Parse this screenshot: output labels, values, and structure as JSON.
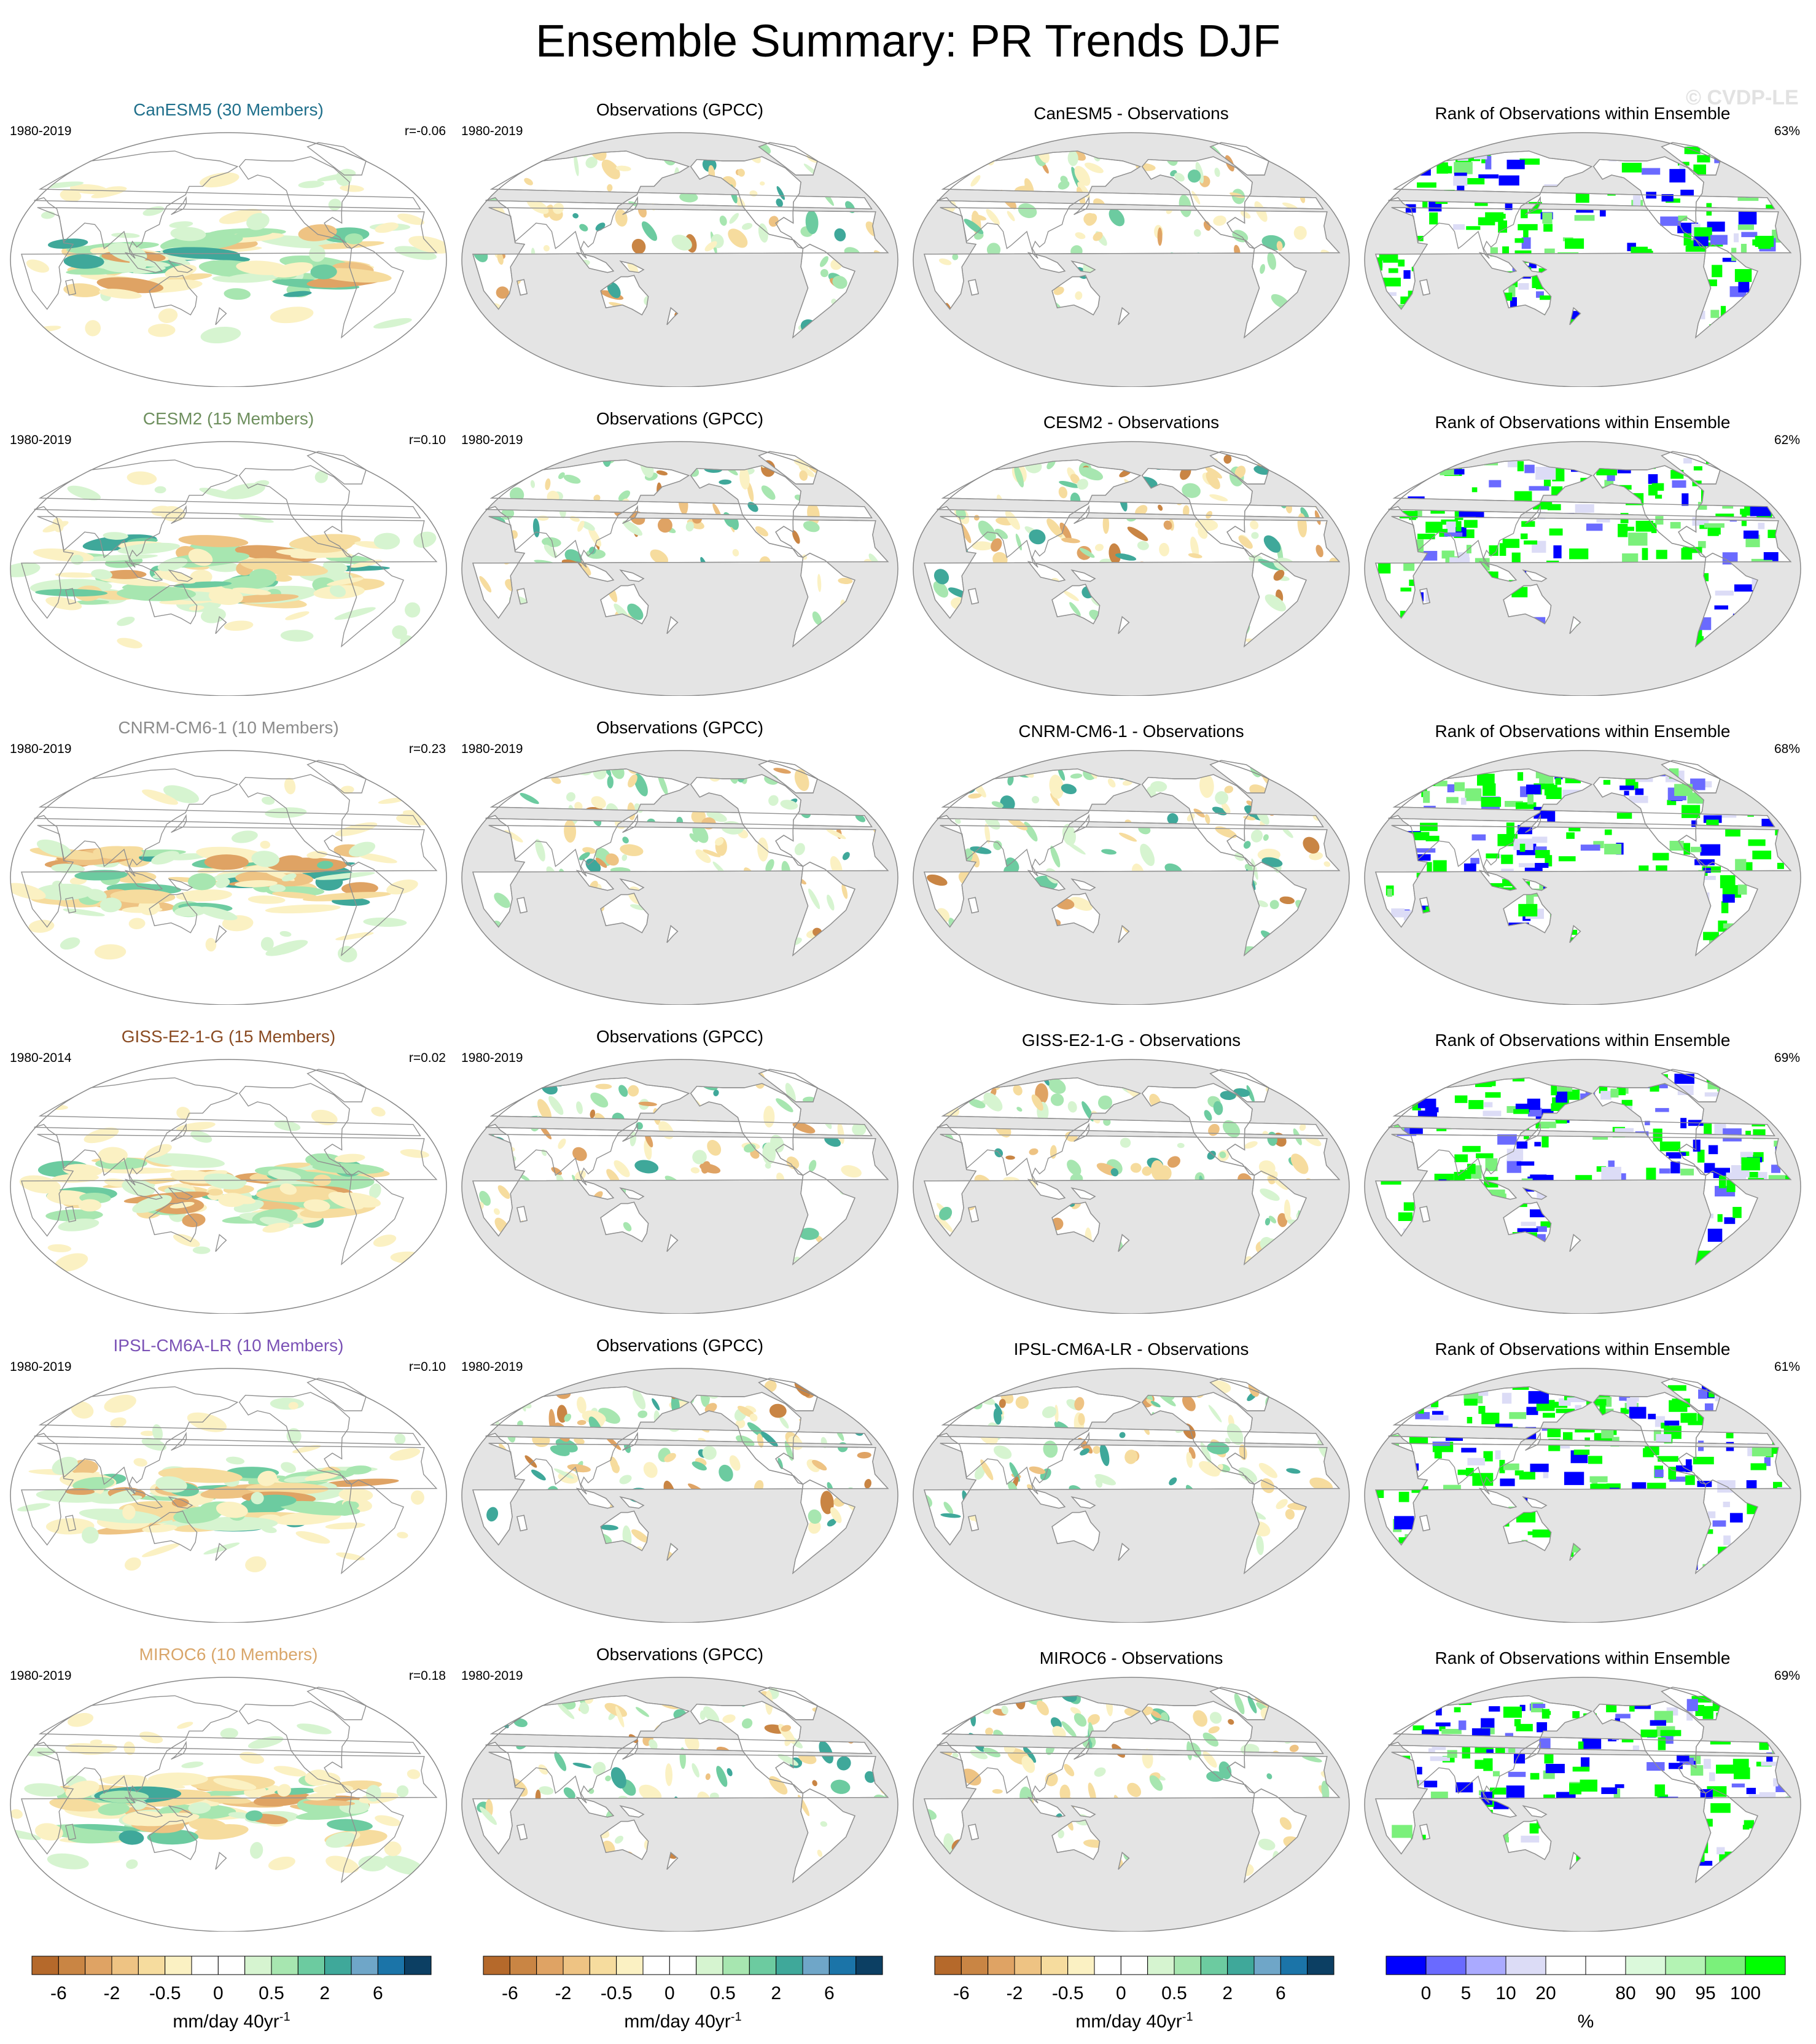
{
  "title": "Ensemble Summary: PR Trends DJF",
  "watermark": "© CVDP-LE",
  "colors": {
    "land_gray": "#e4e4e4",
    "coast": "#909090",
    "ocean": "#ffffff",
    "trend_scale": [
      "#b5692b",
      "#c98544",
      "#dfa364",
      "#eec383",
      "#f6dc9e",
      "#fbf1c3",
      "#ffffff",
      "#ffffff",
      "#d6f4d0",
      "#a7e6b0",
      "#6ccba0",
      "#3fa89a",
      "#6fa6c8",
      "#1b74a8",
      "#0c3f63"
    ],
    "rank_scale": [
      "#0000ff",
      "#6a6aff",
      "#aaaaff",
      "#dcdcf6",
      "#ffffff",
      "#ffffff",
      "#dbf9db",
      "#b4f3b4",
      "#7bf07b",
      "#00ff00"
    ]
  },
  "rows": [
    {
      "model": {
        "title": "CanESM5 (30 Members)",
        "title_color": "#1f6f8b",
        "years": "1980-2019",
        "r": "r=-0.06"
      },
      "obs": {
        "title": "Observations (GPCC)",
        "years": "1980-2019"
      },
      "diff": {
        "title": "CanESM5 - Observations"
      },
      "rank": {
        "title": "Rank of Observations within Ensemble",
        "pct": "63%"
      }
    },
    {
      "model": {
        "title": "CESM2 (15 Members)",
        "title_color": "#6e8f5e",
        "years": "1980-2019",
        "r": "r=0.10"
      },
      "obs": {
        "title": "Observations (GPCC)",
        "years": "1980-2019"
      },
      "diff": {
        "title": "CESM2 - Observations"
      },
      "rank": {
        "title": "Rank of Observations within Ensemble",
        "pct": "62%"
      }
    },
    {
      "model": {
        "title": "CNRM-CM6-1 (10 Members)",
        "title_color": "#8c8c8c",
        "years": "1980-2019",
        "r": "r=0.23"
      },
      "obs": {
        "title": "Observations (GPCC)",
        "years": "1980-2019"
      },
      "diff": {
        "title": "CNRM-CM6-1 - Observations"
      },
      "rank": {
        "title": "Rank of Observations within Ensemble",
        "pct": "68%"
      }
    },
    {
      "model": {
        "title": "GISS-E2-1-G (15 Members)",
        "title_color": "#8a4b22",
        "years": "1980-2014",
        "r": "r=0.02"
      },
      "obs": {
        "title": "Observations (GPCC)",
        "years": "1980-2019"
      },
      "diff": {
        "title": "GISS-E2-1-G - Observations"
      },
      "rank": {
        "title": "Rank of Observations within Ensemble",
        "pct": "69%"
      }
    },
    {
      "model": {
        "title": "IPSL-CM6A-LR (10 Members)",
        "title_color": "#7b52b6",
        "years": "1980-2019",
        "r": "r=0.10"
      },
      "obs": {
        "title": "Observations (GPCC)",
        "years": "1980-2019"
      },
      "diff": {
        "title": "IPSL-CM6A-LR - Observations"
      },
      "rank": {
        "title": "Rank of Observations within Ensemble",
        "pct": "61%"
      }
    },
    {
      "model": {
        "title": "MIROC6 (10 Members)",
        "title_color": "#d9a66a",
        "years": "1980-2019",
        "r": "r=0.18"
      },
      "obs": {
        "title": "Observations (GPCC)",
        "years": "1980-2019"
      },
      "diff": {
        "title": "MIROC6 - Observations"
      },
      "rank": {
        "title": "Rank of Observations within Ensemble",
        "pct": "69%"
      }
    }
  ],
  "colorbars": [
    {
      "ticks": [
        "-6",
        "-2",
        "-0.5",
        "0",
        "0.5",
        "2",
        "6"
      ],
      "label": "mm/day 40yr",
      "label_sup": "-1"
    },
    {
      "ticks": [
        "-6",
        "-2",
        "-0.5",
        "0",
        "0.5",
        "2",
        "6"
      ],
      "label": "mm/day 40yr",
      "label_sup": "-1"
    },
    {
      "ticks": [
        "-6",
        "-2",
        "-0.5",
        "0",
        "0.5",
        "2",
        "6"
      ],
      "label": "mm/day 40yr",
      "label_sup": "-1"
    },
    {
      "ticks": [
        "0",
        "5",
        "10",
        "20",
        "80",
        "90",
        "95",
        "100"
      ],
      "label": "%",
      "label_sup": ""
    }
  ],
  "chart_data": {
    "type": "heatmap",
    "title": "Ensemble Summary: PR Trends DJF",
    "layout": "6 rows x 4 columns of global maps",
    "columns": [
      "model ensemble-mean trend",
      "Observations (GPCC)",
      "model - observations",
      "Rank of Observations within Ensemble"
    ],
    "trend_levels": [
      -6,
      -4,
      -2,
      -1,
      -0.5,
      -0.25,
      0,
      0.25,
      0.5,
      1,
      2,
      4,
      6
    ],
    "trend_units": "mm/day 40yr-1",
    "rank_levels": [
      0,
      5,
      10,
      20,
      80,
      90,
      95,
      100
    ],
    "rank_units": "%",
    "pattern_correlation": {
      "CanESM5": -0.06,
      "CESM2": 0.1,
      "CNRM-CM6-1": 0.23,
      "GISS-E2-1-G": 0.02,
      "IPSL-CM6A-LR": 0.1,
      "MIROC6": 0.18
    },
    "percent_within_ensemble": {
      "CanESM5": 63,
      "CESM2": 62,
      "CNRM-CM6-1": 68,
      "GISS-E2-1-G": 69,
      "IPSL-CM6A-LR": 61,
      "MIROC6": 69
    }
  }
}
